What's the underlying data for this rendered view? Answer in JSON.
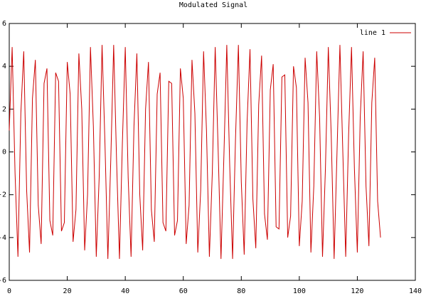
{
  "chart_data": {
    "type": "line",
    "title": "Modulated Signal",
    "x": [
      0,
      1,
      2,
      3,
      4,
      5,
      6,
      7,
      8,
      9,
      10,
      11,
      12,
      13,
      14,
      15,
      16,
      17,
      18,
      19,
      20,
      21,
      22,
      23,
      24,
      25,
      26,
      27,
      28,
      29,
      30,
      31,
      32,
      33,
      34,
      35,
      36,
      37,
      38,
      39,
      40,
      41,
      42,
      43,
      44,
      45,
      46,
      47,
      48,
      49,
      50,
      51,
      52,
      53,
      54,
      55,
      56,
      57,
      58,
      59,
      60,
      61,
      62,
      63,
      64,
      65,
      66,
      67,
      68,
      69,
      70,
      71,
      72,
      73,
      74,
      75,
      76,
      77,
      78,
      79,
      80,
      81,
      82,
      83,
      84,
      85,
      86,
      87,
      88,
      89,
      90,
      91,
      92,
      93,
      94,
      95,
      96,
      97,
      98,
      99,
      100,
      101,
      102,
      103,
      104,
      105,
      106,
      107,
      108,
      109,
      110,
      111,
      112,
      113,
      114,
      115,
      116,
      117,
      118,
      119,
      120,
      121,
      122,
      123,
      124,
      125,
      126,
      127,
      128
    ],
    "series": [
      {
        "name": "line 1",
        "color": "#cc0000",
        "values": [
          1.0,
          4.9,
          -1.0,
          -4.9,
          1.8,
          4.7,
          -1.8,
          -4.7,
          2.5,
          4.3,
          -2.5,
          -4.3,
          3.2,
          3.9,
          -3.2,
          -3.9,
          3.7,
          3.3,
          -3.7,
          -3.3,
          4.2,
          2.7,
          -4.2,
          -2.7,
          4.6,
          2.0,
          -4.6,
          -2.0,
          4.9,
          1.2,
          -4.9,
          -1.2,
          5.0,
          0.4,
          -5.0,
          -0.4,
          5.0,
          -0.4,
          -5.0,
          0.4,
          4.9,
          -1.2,
          -4.9,
          1.2,
          4.6,
          -2.0,
          -4.6,
          2.0,
          4.2,
          -2.7,
          -4.2,
          2.7,
          3.7,
          -3.3,
          -3.7,
          3.3,
          3.2,
          -3.9,
          -3.2,
          3.9,
          2.5,
          -4.3,
          -2.5,
          4.3,
          1.8,
          -4.7,
          -1.8,
          4.7,
          1.0,
          -4.9,
          -1.0,
          4.9,
          0.2,
          -5.0,
          -0.2,
          5.0,
          -0.6,
          -5.0,
          0.6,
          5.0,
          -1.4,
          -4.8,
          1.4,
          4.8,
          -2.2,
          -4.5,
          2.2,
          4.5,
          -2.9,
          -4.1,
          2.9,
          4.1,
          -3.5,
          -3.6,
          3.5,
          3.6,
          -4.0,
          -3.0,
          4.0,
          3.0,
          -4.4,
          -2.3,
          4.4,
          2.3,
          -4.7,
          -1.6,
          4.7,
          1.6,
          -4.9,
          -0.8,
          4.9,
          0.8,
          -5.0,
          0.0,
          5.0,
          0.0,
          -4.9,
          0.8,
          4.9,
          -0.8,
          -4.7,
          1.6,
          4.7,
          -1.6,
          -4.4,
          2.3,
          4.4,
          -2.3,
          -4.0
        ]
      }
    ],
    "xlim": [
      0,
      140
    ],
    "xticks": [
      0,
      20,
      40,
      60,
      80,
      100,
      120,
      140
    ],
    "ylim": [
      -6,
      6
    ],
    "yticks": [
      -6,
      -4,
      -2,
      0,
      2,
      4,
      6
    ],
    "legend": "top-right"
  }
}
